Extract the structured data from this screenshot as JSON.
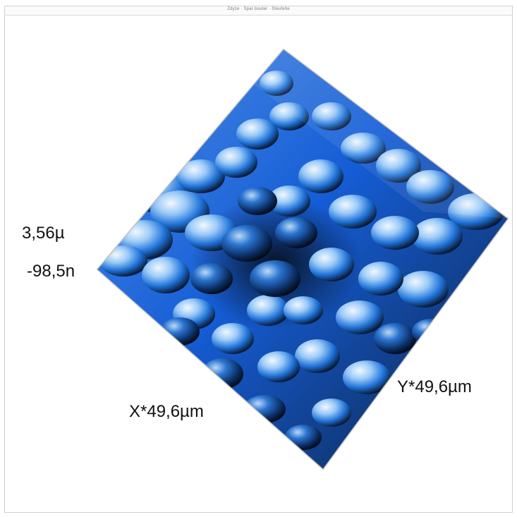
{
  "window": {
    "title": "Zdyze · Spar·bouter · Steufelte"
  },
  "plot": {
    "type": "3d-surface",
    "colormap": [
      "#0b1630",
      "#0f4fb8",
      "#1d7be6",
      "#79b9f4",
      "#eef7ff"
    ],
    "z_max_label": "3,56µ",
    "z_min_label": "-98,5n",
    "x_axis_label": "X*49,6µm",
    "y_axis_label": "Y*49,6µm"
  }
}
